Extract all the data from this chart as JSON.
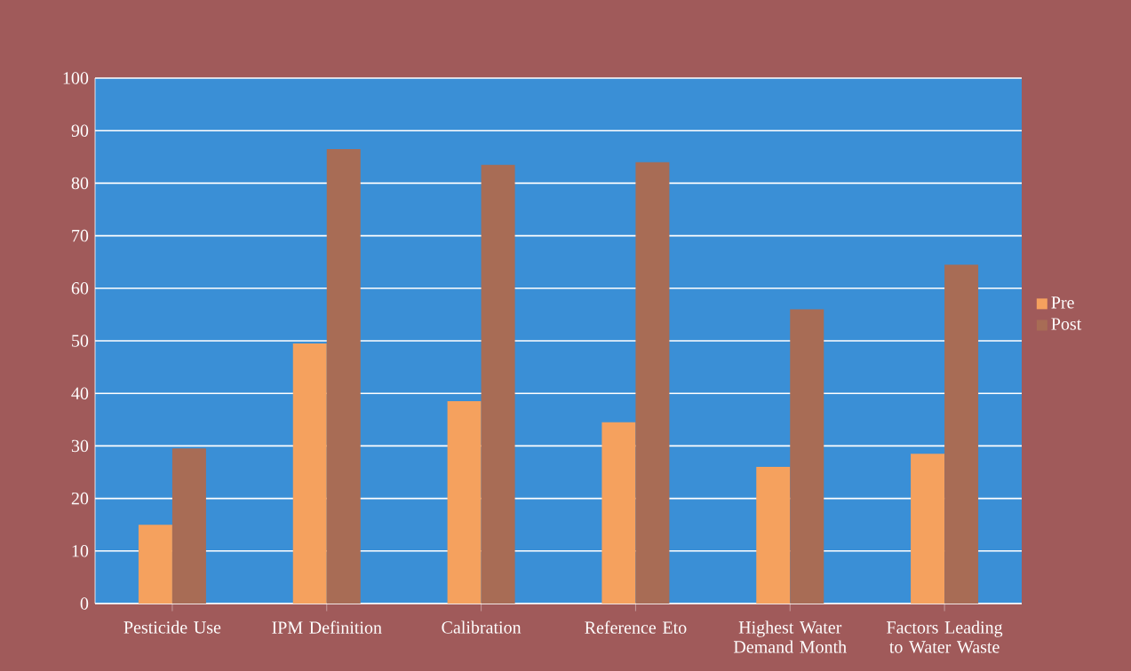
{
  "chart_data": {
    "type": "bar",
    "categories": [
      "Pesticide Use",
      "IPM Definition",
      "Calibration",
      "Reference Eto",
      "Highest Water Demand Month",
      "Factors Leading to Water Waste"
    ],
    "series": [
      {
        "name": "Pre",
        "color": "#f5a15e",
        "values": [
          15,
          49.5,
          38.5,
          34.5,
          26,
          28.5
        ]
      },
      {
        "name": "Post",
        "color": "#a86c55",
        "values": [
          29.5,
          86.5,
          83.5,
          84,
          56,
          64.5
        ]
      }
    ],
    "ylim": [
      0,
      100
    ],
    "yticks": [
      0,
      10,
      20,
      30,
      40,
      50,
      60,
      70,
      80,
      90,
      100
    ],
    "grid": "y",
    "legend": "right"
  }
}
